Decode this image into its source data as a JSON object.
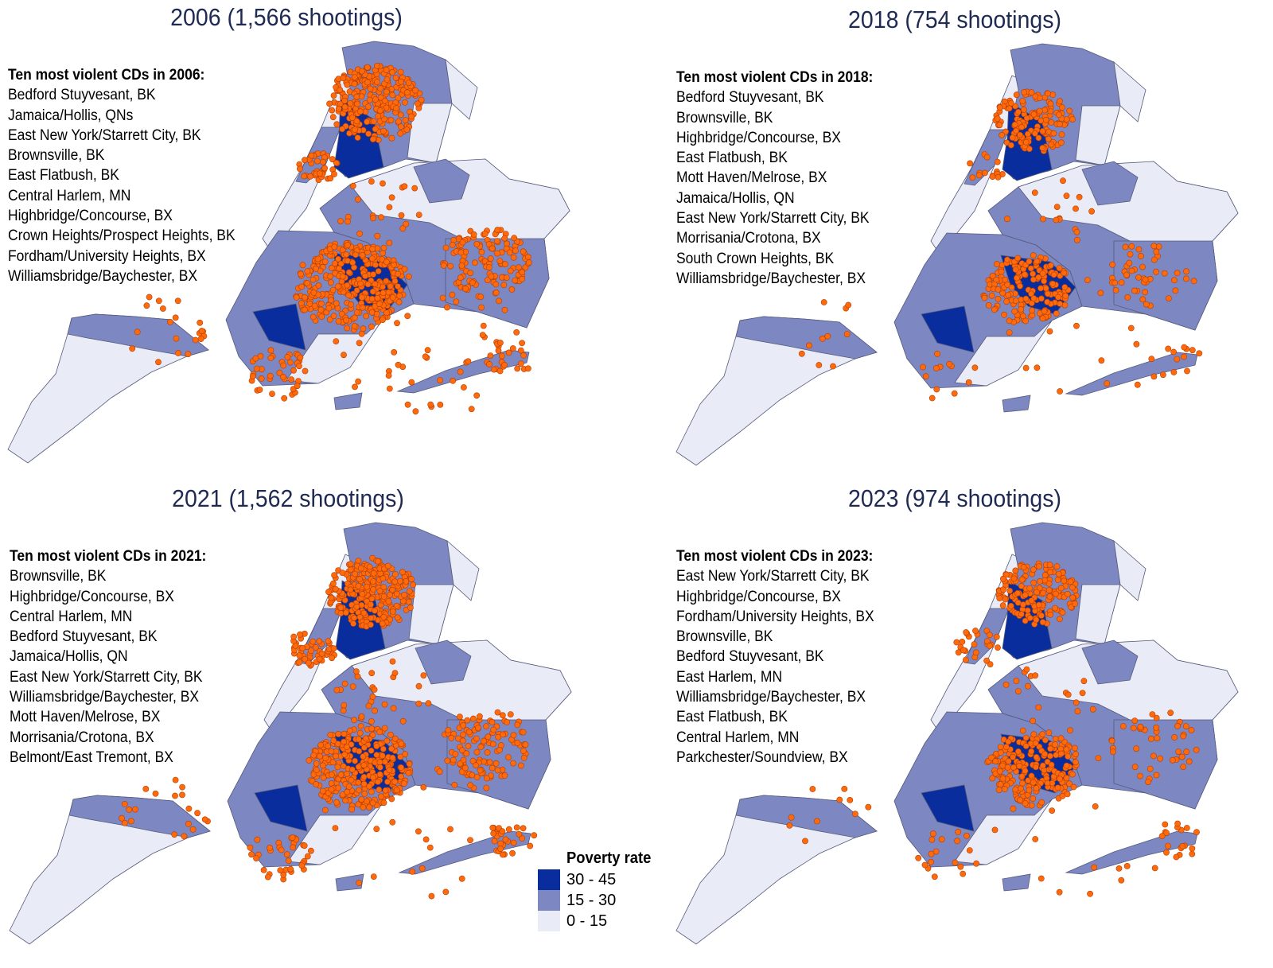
{
  "colors": {
    "high": "#0a2d9e",
    "mid": "#7d87c2",
    "low": "#e9ebf6",
    "shooting": "#ff6a0d",
    "shooting_edge": "#b33c00",
    "border": "#555a7a"
  },
  "panels": [
    {
      "year": "2006",
      "title": "2006 (1,566 shootings)",
      "list_heading": "Ten most violent CDs in 2006:",
      "list": [
        "Bedford Stuyvesant, BK",
        "Jamaica/Hollis, QNs",
        "East New York/Starrett City, BK",
        "Brownsville, BK",
        "East Flatbush, BK",
        "Central Harlem, MN",
        "Highbridge/Concourse, BX",
        "Crown Heights/Prospect Heights, BK",
        "Fordham/University Heights, BX",
        "Williamsbridge/Baychester, BX"
      ],
      "shootings": 1566
    },
    {
      "year": "2018",
      "title": "2018 (754 shootings)",
      "list_heading": "Ten most violent CDs in 2018:",
      "list": [
        "Bedford Stuyvesant, BK",
        "Brownsville, BK",
        "Highbridge/Concourse, BX",
        "East Flatbush, BK",
        "Mott Haven/Melrose, BX",
        "Jamaica/Hollis, QN",
        "East New York/Starrett City, BK",
        "Morrisania/Crotona, BX",
        "South Crown Heights, BK",
        "Williamsbridge/Baychester, BX"
      ],
      "shootings": 754
    },
    {
      "year": "2021",
      "title": "2021 (1,562 shootings)",
      "list_heading": "Ten most violent CDs in 2021:",
      "list": [
        "Brownsville, BK",
        "Highbridge/Concourse, BX",
        "Central Harlem, MN",
        "Bedford Stuyvesant, BK",
        "Jamaica/Hollis, QN",
        "East New York/Starrett City, BK",
        "Williamsbridge/Baychester, BX",
        "Mott Haven/Melrose, BX",
        "Morrisania/Crotona, BX",
        "Belmont/East Tremont, BX"
      ],
      "shootings": 1562
    },
    {
      "year": "2023",
      "title": "2023 (974 shootings)",
      "list_heading": "Ten most violent CDs in 2023:",
      "list": [
        "East New York/Starrett City, BK",
        "Highbridge/Concourse, BX",
        "Fordham/University Heights, BX",
        "Brownsville, BK",
        "Bedford Stuyvesant, BK",
        "East Harlem, MN",
        "Williamsbridge/Baychester, BX",
        "East Flatbush, BK",
        "Central Harlem, MN",
        "Parkchester/Soundview, BX"
      ],
      "shootings": 974
    }
  ],
  "legend": {
    "title": "Poverty rate",
    "items": [
      {
        "label": "30 - 45",
        "level": "high"
      },
      {
        "label": "15 - 30",
        "level": "mid"
      },
      {
        "label": "0 - 15",
        "level": "low"
      }
    ]
  }
}
